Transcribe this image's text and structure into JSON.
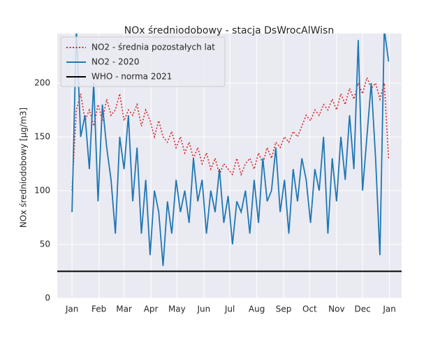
{
  "chart_data": {
    "type": "line",
    "title": "NOx średniodobowy - stacja DsWrocAlWisn",
    "y_label": "NOx średniodobowy [µg/m3]",
    "x": [
      0,
      5,
      10,
      15,
      20,
      25,
      30,
      35,
      40,
      45,
      50,
      55,
      60,
      65,
      70,
      75,
      80,
      85,
      90,
      95,
      100,
      105,
      110,
      115,
      120,
      125,
      130,
      135,
      140,
      145,
      150,
      155,
      160,
      165,
      170,
      175,
      180,
      185,
      190,
      195,
      200,
      205,
      210,
      215,
      220,
      225,
      230,
      235,
      240,
      245,
      250,
      255,
      260,
      265,
      270,
      275,
      280,
      285,
      290,
      295,
      300,
      305,
      310,
      315,
      320,
      325,
      330,
      335,
      340,
      345,
      350,
      355,
      360,
      365
    ],
    "series": [
      {
        "name": "NO2 - średnia pozostałych lat",
        "color": "#d62728",
        "dash": "dotted",
        "values": [
          100,
          175,
          190,
          165,
          175,
          160,
          180,
          165,
          185,
          170,
          175,
          190,
          165,
          175,
          170,
          180,
          160,
          175,
          165,
          150,
          165,
          150,
          145,
          155,
          140,
          150,
          135,
          145,
          130,
          140,
          125,
          135,
          120,
          130,
          115,
          125,
          120,
          115,
          130,
          115,
          125,
          130,
          120,
          135,
          125,
          140,
          130,
          145,
          140,
          150,
          145,
          155,
          150,
          160,
          170,
          165,
          175,
          170,
          180,
          175,
          185,
          175,
          190,
          180,
          195,
          185,
          200,
          190,
          205,
          195,
          200,
          185,
          200,
          130
        ]
      },
      {
        "name": "NO2 - 2020",
        "color": "#1f77b4",
        "dash": "solid",
        "values": [
          80,
          250,
          150,
          170,
          120,
          200,
          90,
          180,
          140,
          110,
          60,
          150,
          120,
          170,
          90,
          140,
          60,
          110,
          40,
          100,
          80,
          30,
          90,
          60,
          110,
          80,
          100,
          70,
          130,
          90,
          110,
          60,
          100,
          80,
          120,
          70,
          95,
          50,
          90,
          80,
          100,
          60,
          110,
          70,
          130,
          90,
          100,
          140,
          80,
          110,
          60,
          120,
          90,
          130,
          110,
          70,
          120,
          100,
          150,
          60,
          130,
          90,
          150,
          110,
          170,
          120,
          240,
          100,
          150,
          200,
          130,
          40,
          250,
          220
        ]
      }
    ],
    "hlines": [
      {
        "name": "WHO - norma 2021",
        "value": 25,
        "color": "#000000"
      }
    ],
    "xlim": [
      -17,
      380
    ],
    "ylim": [
      0,
      246
    ],
    "xticks": [
      {
        "value": 0,
        "label": "Jan"
      },
      {
        "value": 31,
        "label": "Feb"
      },
      {
        "value": 60,
        "label": "Mar"
      },
      {
        "value": 91,
        "label": "Apr"
      },
      {
        "value": 121,
        "label": "May"
      },
      {
        "value": 152,
        "label": "Jun"
      },
      {
        "value": 182,
        "label": "Jul"
      },
      {
        "value": 213,
        "label": "Aug"
      },
      {
        "value": 244,
        "label": "Sep"
      },
      {
        "value": 274,
        "label": "Oct"
      },
      {
        "value": 305,
        "label": "Nov"
      },
      {
        "value": 335,
        "label": "Dec"
      },
      {
        "value": 366,
        "label": "Jan"
      }
    ],
    "yticks": [
      0,
      50,
      100,
      150,
      200
    ],
    "grid": true,
    "legend": "upper-left"
  }
}
